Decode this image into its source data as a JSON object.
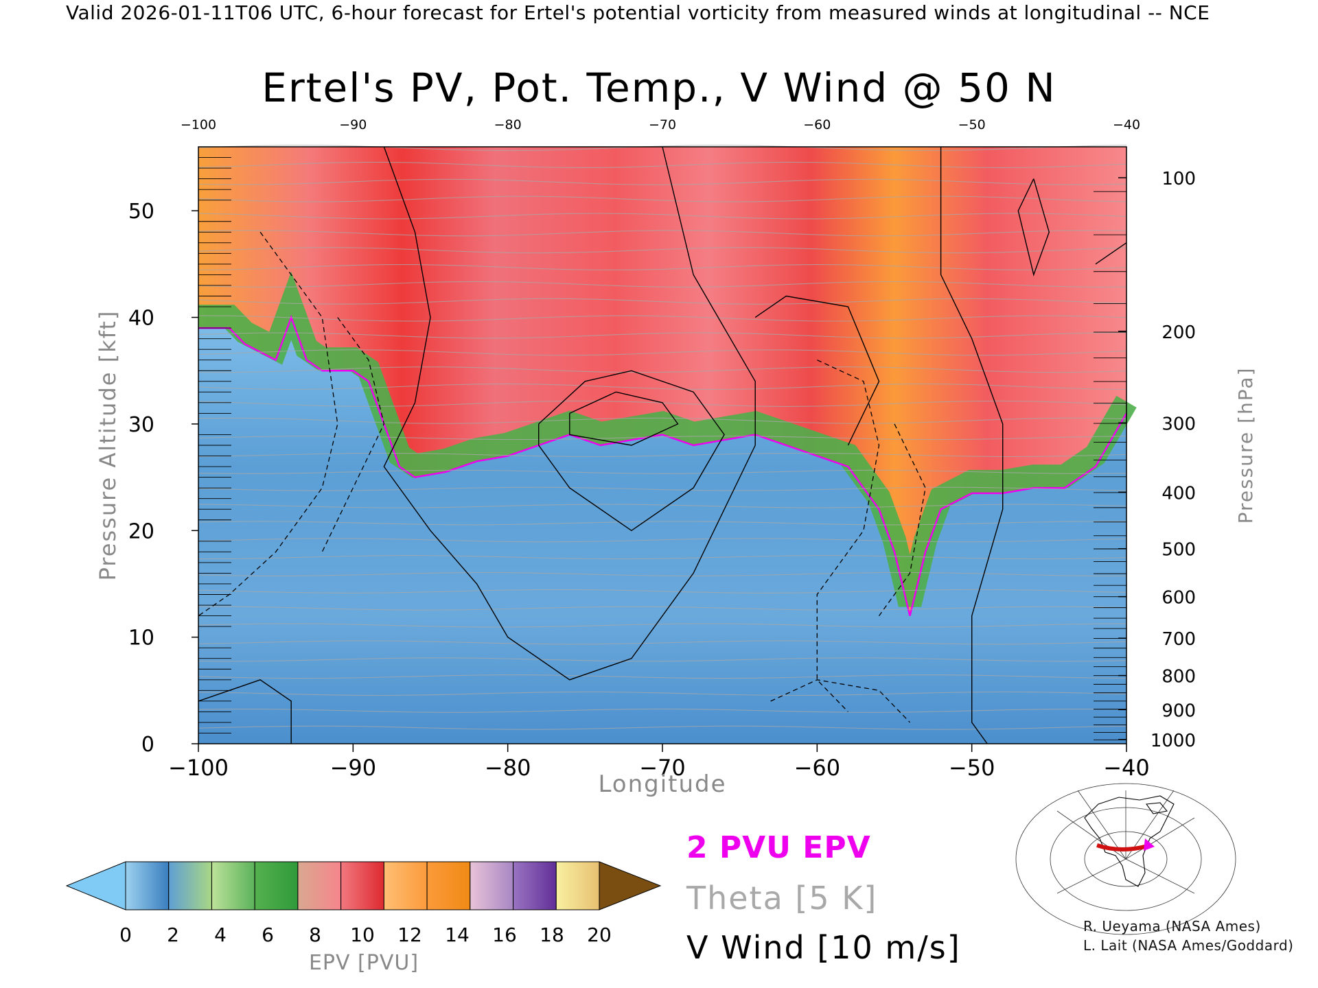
{
  "header": "Valid 2026-01-11T06 UTC, 6-hour forecast for Ertel's potential vorticity from measured winds at longitudinal -- NCE",
  "chart_data": {
    "type": "heatmap",
    "title": "Ertel's PV, Pot. Temp., V Wind @ 50 N",
    "xlabel": "Longitude",
    "ylabel": "Pressure Altitude [kft]",
    "y2label": "Pressure [hPa]",
    "xlim": [
      -100,
      -40
    ],
    "ylim": [
      0,
      56
    ],
    "x_ticks": [
      "-100",
      "-90",
      "-80",
      "-70",
      "-60",
      "-50",
      "-40"
    ],
    "x_ticks_top": [
      "-100",
      "-90",
      "-80",
      "-70",
      "-60",
      "-50",
      "-40"
    ],
    "y_ticks": [
      "0",
      "10",
      "20",
      "30",
      "40",
      "50"
    ],
    "y2_ticks": [
      {
        "label": "100",
        "kft": 53.1
      },
      {
        "label": "200",
        "kft": 38.7
      },
      {
        "label": "300",
        "kft": 30.1
      },
      {
        "label": "400",
        "kft": 23.6
      },
      {
        "label": "500",
        "kft": 18.3
      },
      {
        "label": "600",
        "kft": 13.8
      },
      {
        "label": "700",
        "kft": 9.9
      },
      {
        "label": "800",
        "kft": 6.4
      },
      {
        "label": "900",
        "kft": 3.2
      },
      {
        "label": "1000",
        "kft": 0.4
      }
    ],
    "tropopause_2pvu_kft": [
      [
        -100,
        39.0
      ],
      [
        -98,
        39.0
      ],
      [
        -97,
        37.5
      ],
      [
        -95,
        36.0
      ],
      [
        -94,
        40.0
      ],
      [
        -93,
        36.0
      ],
      [
        -92,
        35.0
      ],
      [
        -90,
        35.0
      ],
      [
        -89,
        34.0
      ],
      [
        -88,
        30.0
      ],
      [
        -87,
        26.0
      ],
      [
        -86,
        25.0
      ],
      [
        -84,
        25.5
      ],
      [
        -82,
        26.5
      ],
      [
        -80,
        27.0
      ],
      [
        -78,
        28.0
      ],
      [
        -76,
        29.0
      ],
      [
        -74,
        28.0
      ],
      [
        -72,
        28.5
      ],
      [
        -70,
        29.0
      ],
      [
        -68,
        28.0
      ],
      [
        -66,
        28.5
      ],
      [
        -64,
        29.0
      ],
      [
        -62,
        28.0
      ],
      [
        -60,
        27.0
      ],
      [
        -58,
        26.0
      ],
      [
        -56,
        22.0
      ],
      [
        -55,
        18.0
      ],
      [
        -54,
        12.0
      ],
      [
        -53,
        18.0
      ],
      [
        -52,
        22.0
      ],
      [
        -50,
        23.5
      ],
      [
        -48,
        23.5
      ],
      [
        -46,
        24.0
      ],
      [
        -44,
        24.0
      ],
      [
        -42,
        26.0
      ],
      [
        -40,
        31.0
      ]
    ],
    "colorbar": {
      "label": "EPV [PVU]",
      "min": 0,
      "max": 20,
      "step": 2,
      "tick_labels": [
        "0",
        "2",
        "4",
        "6",
        "8",
        "10",
        "12",
        "14",
        "16",
        "18",
        "20"
      ],
      "below_color": "#80cbf6",
      "above_color": "#7a4e10",
      "bins": [
        [
          "#9cd1ef",
          "#3a7ebf"
        ],
        [
          "#5f9fd4",
          "#a9d784"
        ],
        [
          "#bde29a",
          "#5bb25a"
        ],
        [
          "#55b14e",
          "#2f9a3a"
        ],
        [
          "#d9a890",
          "#f7858c"
        ],
        [
          "#f2787f",
          "#dd2a30"
        ],
        [
          "#ffbf73",
          "#fb9a3c"
        ],
        [
          "#fb9a3a",
          "#f08a15"
        ],
        [
          "#e8c3d8",
          "#a887c4"
        ],
        [
          "#9a74c2",
          "#612f98"
        ],
        [
          "#f8f0a0",
          "#e8c072"
        ]
      ]
    },
    "legend": {
      "epv": "2 PVU EPV",
      "theta": "Theta [5 K]",
      "vwind": "V Wind [10 m/s]"
    },
    "colors": {
      "epv_contour": "#ee00ee",
      "theta_contour": "#a8a8a8",
      "vwind_contour": "#000000"
    }
  },
  "credits": [
    "R. Ueyama (NASA Ames)",
    "L. Lait (NASA Ames/Goddard)"
  ]
}
